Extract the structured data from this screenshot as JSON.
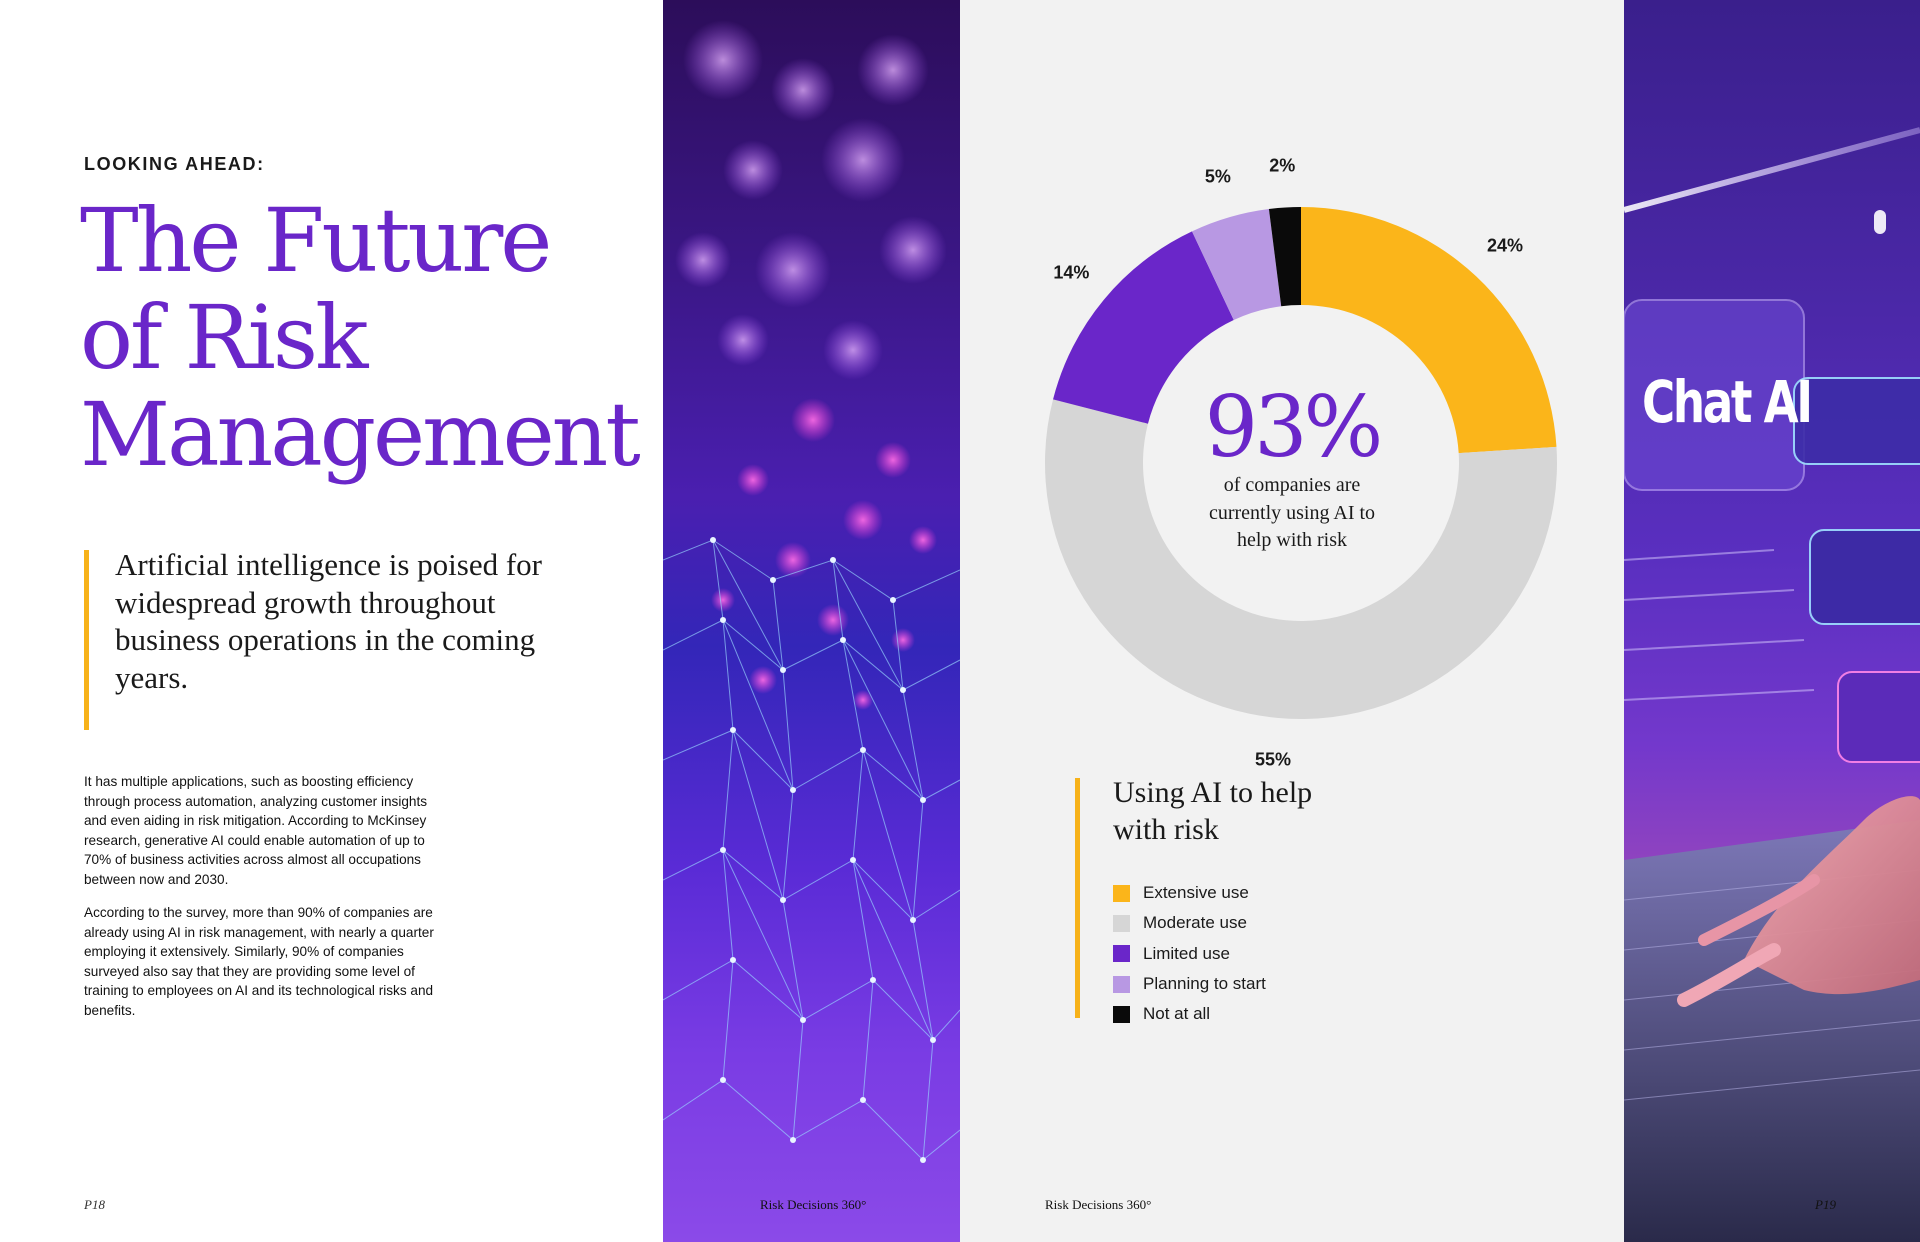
{
  "left_page": {
    "eyebrow": "LOOKING AHEAD:",
    "title_lines": [
      "The Future",
      "of Risk",
      "Management"
    ],
    "pull_quote": "Artificial intelligence is poised for widespread growth throughout business operations in the coming years.",
    "paragraphs": [
      "It has multiple applications, such as boosting efficiency through process automation, analyzing customer insights and even aiding in risk mitigation. According to McKinsey research, generative AI could enable automation of up to 70% of business activities across almost all occupations between now and 2030.",
      "According to the survey, more than 90% of companies are already using AI in risk management, with nearly a quarter employing it extensively. Similarly, 90% of companies surveyed also say that they are providing some level of training to employees on AI and its technological risks and benefits."
    ],
    "page_number": "P18"
  },
  "photo_network": {
    "footer": "Risk Decisions 360°"
  },
  "photo_chat": {
    "screen_text": "Chat AI"
  },
  "chart_panel": {
    "center_value": "93%",
    "center_caption": "of companies are currently using AI to help with risk",
    "legend_title": "Using AI to help with risk",
    "footer": "Risk Decisions 360°",
    "page_number": "P19"
  },
  "colors": {
    "accent_purple": "#6a26c9",
    "accent_gold": "#f7b21a"
  },
  "chart_data": {
    "type": "pie",
    "donut": true,
    "slices": [
      {
        "name": "Extensive use",
        "value": 24,
        "label": "24%",
        "color": "#fbb51a"
      },
      {
        "name": "Moderate use",
        "value": 55,
        "label": "55%",
        "color": "#d6d6d6"
      },
      {
        "name": "Limited use",
        "value": 14,
        "label": "14%",
        "color": "#6a26c9"
      },
      {
        "name": "Planning to start",
        "value": 5,
        "label": "5%",
        "color": "#b898e3"
      },
      {
        "name": "Not at all",
        "value": 2,
        "label": "2%",
        "color": "#0a0a0a"
      }
    ],
    "legend_placement": "bottom-left"
  }
}
